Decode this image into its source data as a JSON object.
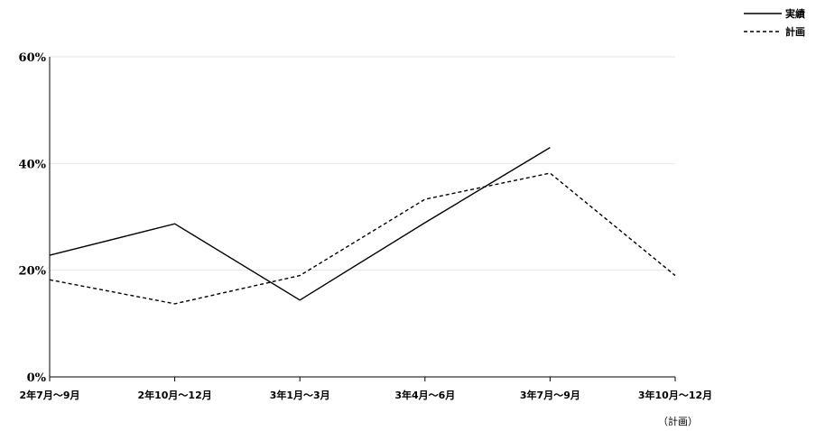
{
  "chart_data": {
    "type": "line",
    "categories": [
      "2年7月～9月",
      "2年10月～12月",
      "3年1月～3月",
      "3年4月～6月",
      "3年7月～9月",
      "3年10月～12月"
    ],
    "series": [
      {
        "name": "実績",
        "values": [
          22.8,
          28.7,
          14.4,
          28.9,
          43.0,
          null
        ],
        "line_style": "solid",
        "color": "#000000"
      },
      {
        "name": "計画",
        "values": [
          18.2,
          13.7,
          19.0,
          33.3,
          38.2,
          19.0
        ],
        "line_style": "dashed",
        "color": "#000000"
      }
    ],
    "y_ticks": [
      "0%",
      "20%",
      "40%",
      "60%"
    ],
    "ylim": [
      0,
      60
    ],
    "grid": true,
    "legend_position": "top-right",
    "annotation": "（計画）"
  }
}
